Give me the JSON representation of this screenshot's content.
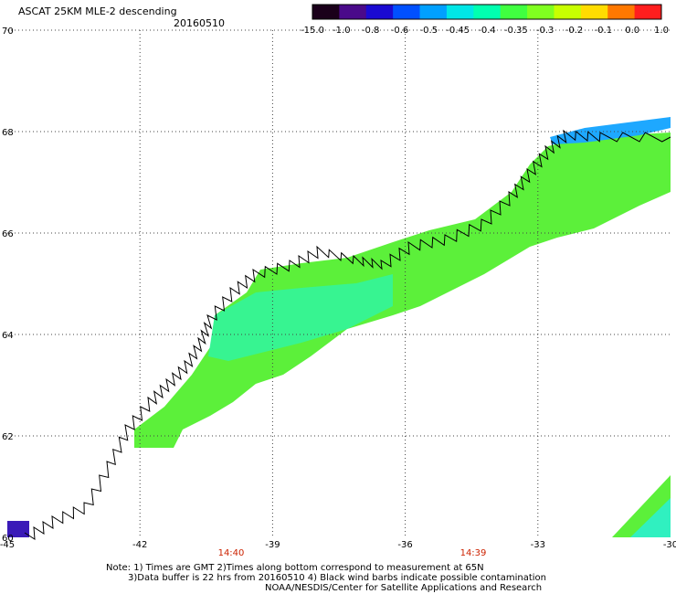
{
  "header": {
    "title": "ASCAT 25KM MLE-2 descending",
    "date": "20160510"
  },
  "colorbar": {
    "labels": [
      "-15.0",
      "-1.0",
      "-0.8",
      "-0.6",
      "-0.5",
      "-0.45",
      "-0.4",
      "-0.35",
      "-0.3",
      "-0.2",
      "-0.1",
      "0.0",
      "1.0"
    ],
    "colors": [
      "#1a001a",
      "#4a0a8a",
      "#1a0ad2",
      "#0050ff",
      "#00a0ff",
      "#00e6e6",
      "#00ffb0",
      "#40ff40",
      "#80ff20",
      "#c8ff00",
      "#ffdc00",
      "#ff7800",
      "#ff1e1e"
    ]
  },
  "map": {
    "lon_labels": [
      "-45",
      "-42",
      "-39",
      "-36",
      "-33",
      "-30"
    ],
    "lat_labels": [
      "70",
      "68",
      "66",
      "64",
      "62",
      "60"
    ],
    "time_labels": [
      "14:40",
      "14:39"
    ],
    "colors": {
      "grid": "#444444",
      "time": "#cc2200",
      "land_edge": "#000000"
    }
  },
  "notes": {
    "line1": "Note: 1) Times are GMT 2)Times along bottom correspond to measurement at 65N",
    "line2": "3)Data buffer is 22 hrs from 20160510 4) Black wind barbs indicate possible contamination",
    "line3": "NOAA/NESDIS/Center for Satellite Applications and Research"
  }
}
